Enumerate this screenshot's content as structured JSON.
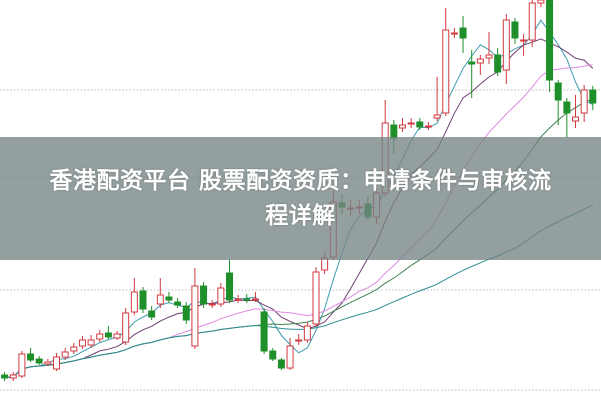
{
  "title": {
    "line1": "香港配资平台 股票配资资质：申请条件与审核流",
    "line2": "程详解"
  },
  "colors": {
    "up": "#d2393f",
    "down": "#1f8f2a",
    "ma5": "#3c9cb0",
    "ma10": "#6e3f72",
    "ma20": "#e08be0",
    "ma30": "#3f7f4f",
    "ma60": "#2f8e93",
    "grid": "#bdbdbd",
    "banner": "#768484"
  },
  "chart_data": {
    "type": "candlestick",
    "title": "",
    "xlabel": "",
    "ylabel": "",
    "grid": "horizontal dotted",
    "axes_visible": false,
    "ylim": [
      0,
      40
    ],
    "moving_averages": [
      5,
      10,
      20,
      30,
      60
    ],
    "ohlc_fields": [
      "open",
      "close",
      "high",
      "low"
    ],
    "candles": [
      [
        2.5,
        2.2,
        2.8,
        1.9
      ],
      [
        2.2,
        2.5,
        2.8,
        1.9
      ],
      [
        2.4,
        4.6,
        4.9,
        2.2
      ],
      [
        4.6,
        4.0,
        5.2,
        3.8
      ],
      [
        4.1,
        3.7,
        4.4,
        3.5
      ],
      [
        3.6,
        3.8,
        4.1,
        3.4
      ],
      [
        3.1,
        4.3,
        4.7,
        2.9
      ],
      [
        4.3,
        4.8,
        5.2,
        4.0
      ],
      [
        4.9,
        5.3,
        5.7,
        4.6
      ],
      [
        5.4,
        6.0,
        6.4,
        5.1
      ],
      [
        5.5,
        6.0,
        6.5,
        5.2
      ],
      [
        6.1,
        6.6,
        7.0,
        5.8
      ],
      [
        6.7,
        6.3,
        7.4,
        6.1
      ],
      [
        6.2,
        6.6,
        6.9,
        6.0
      ],
      [
        5.8,
        8.7,
        9.2,
        5.5
      ],
      [
        8.8,
        10.8,
        12.2,
        8.5
      ],
      [
        10.9,
        9.1,
        11.3,
        8.7
      ],
      [
        8.9,
        8.3,
        9.4,
        8.0
      ],
      [
        9.6,
        10.5,
        12.2,
        9.2
      ],
      [
        10.3,
        10.0,
        10.8,
        9.7
      ],
      [
        9.8,
        9.5,
        10.2,
        9.2
      ],
      [
        9.4,
        8.0,
        9.8,
        7.6
      ],
      [
        5.4,
        11.4,
        13.2,
        5.1
      ],
      [
        11.4,
        9.6,
        11.8,
        9.2
      ],
      [
        9.5,
        9.6,
        10.0,
        9.2
      ],
      [
        9.6,
        11.2,
        11.7,
        9.3
      ],
      [
        12.7,
        10.0,
        14.1,
        9.7
      ],
      [
        10.0,
        10.1,
        10.5,
        9.7
      ],
      [
        10.1,
        10.0,
        10.6,
        9.7
      ],
      [
        10.0,
        10.1,
        10.8,
        9.8
      ],
      [
        8.8,
        4.9,
        9.2,
        4.6
      ],
      [
        4.9,
        4.1,
        5.2,
        3.9
      ],
      [
        4.0,
        3.2,
        4.2,
        3.0
      ],
      [
        3.2,
        5.4,
        6.2,
        3.0
      ],
      [
        5.9,
        6.0,
        6.6,
        5.5
      ],
      [
        6.0,
        7.4,
        7.8,
        5.7
      ],
      [
        7.6,
        12.8,
        13.3,
        7.3
      ],
      [
        13.0,
        14.2,
        14.8,
        12.6
      ],
      [
        14.3,
        19.8,
        21.0,
        14.0
      ],
      [
        19.7,
        19.3,
        20.6,
        18.6
      ],
      [
        19.2,
        19.2,
        20.0,
        18.4
      ],
      [
        19.3,
        19.3,
        20.0,
        18.6
      ],
      [
        19.6,
        18.3,
        20.4,
        18.0
      ],
      [
        18.3,
        20.7,
        21.2,
        17.6
      ],
      [
        20.7,
        27.7,
        30.0,
        20.3
      ],
      [
        27.5,
        26.2,
        28.0,
        24.6
      ],
      [
        27.2,
        27.5,
        28.2,
        26.8
      ],
      [
        27.7,
        27.7,
        28.2,
        27.2
      ],
      [
        27.8,
        27.3,
        28.2,
        27.0
      ],
      [
        27.4,
        27.4,
        27.8,
        27.0
      ],
      [
        28.2,
        28.5,
        32.3,
        27.9
      ],
      [
        28.7,
        37.0,
        39.2,
        28.4
      ],
      [
        36.7,
        36.7,
        37.2,
        36.2
      ],
      [
        37.2,
        36.2,
        38.4,
        34.7
      ],
      [
        33.8,
        33.6,
        35.0,
        30.2
      ],
      [
        33.7,
        34.1,
        34.5,
        32.5
      ],
      [
        34.2,
        34.5,
        36.8,
        33.6
      ],
      [
        34.5,
        32.8,
        35.2,
        32.4
      ],
      [
        33.0,
        38.0,
        38.6,
        31.6
      ],
      [
        37.8,
        36.2,
        38.2,
        35.6
      ],
      [
        36.0,
        36.0,
        36.6,
        34.4
      ],
      [
        36.0,
        39.7,
        40.0,
        35.3
      ],
      [
        39.7,
        40.0,
        40.0,
        39.3
      ],
      [
        40.0,
        32.0,
        40.0,
        30.8
      ],
      [
        31.7,
        30.0,
        32.0,
        27.5
      ],
      [
        29.8,
        28.7,
        30.2,
        26.2
      ],
      [
        27.9,
        28.3,
        30.5,
        27.2
      ],
      [
        28.7,
        31.0,
        31.5,
        27.8
      ],
      [
        31.0,
        29.7,
        31.4,
        29.0
      ]
    ]
  }
}
